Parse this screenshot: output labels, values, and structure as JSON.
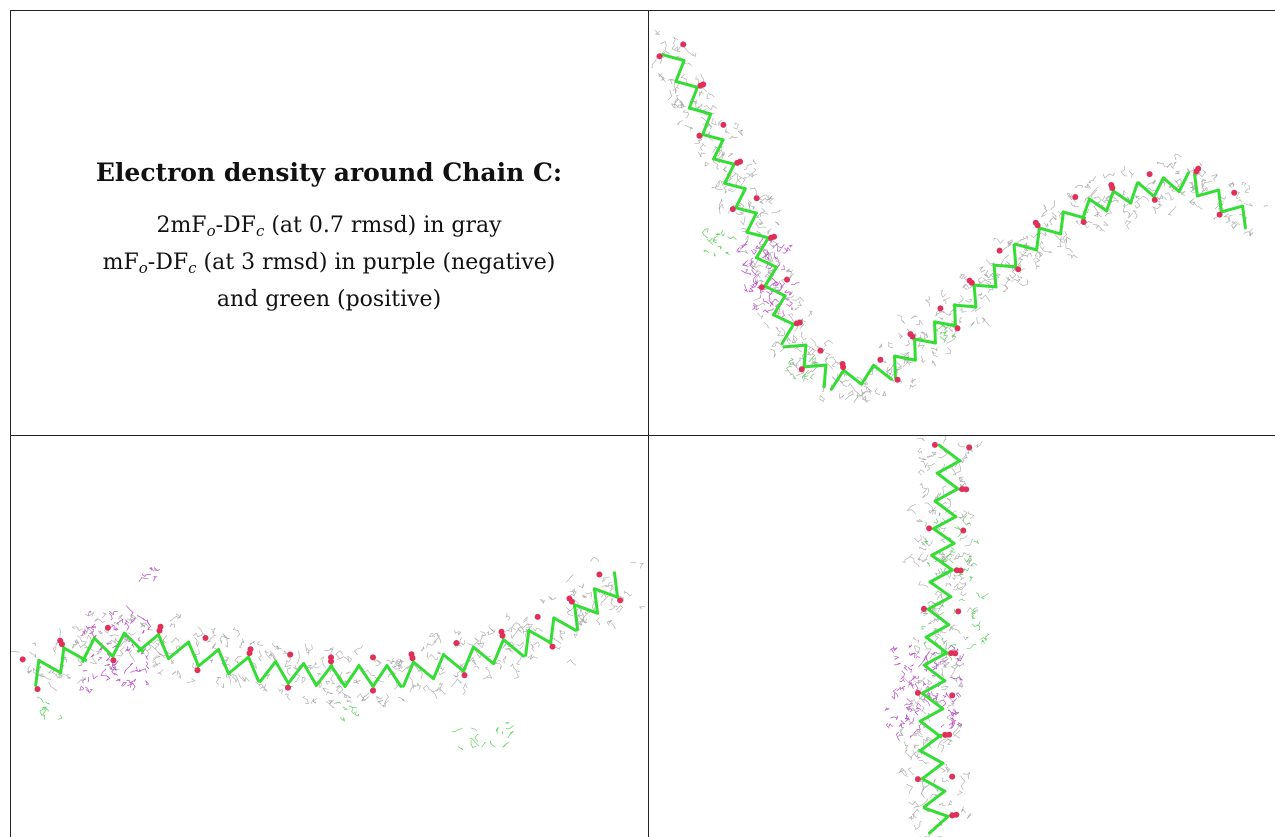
{
  "caption": {
    "title": "Electron density around Chain C:",
    "line1": {
      "a": "2mF",
      "a_sub": "o",
      "b": "-DF",
      "b_sub": "c",
      "rest": " (at 0.7 rmsd) in gray"
    },
    "line2": {
      "a": "mF",
      "a_sub": "o",
      "b": "-DF",
      "b_sub": "c",
      "rest": " (at 3 rmsd) in purple (negative)"
    },
    "line3": "and green (positive)"
  },
  "colors": {
    "mesh_2fofc": "#8c8c8c",
    "model_bonds": "#33dd33",
    "oxygen_atoms": "#e0305a",
    "negative_density": "#b030c0",
    "positive_density": "#44cc44"
  }
}
